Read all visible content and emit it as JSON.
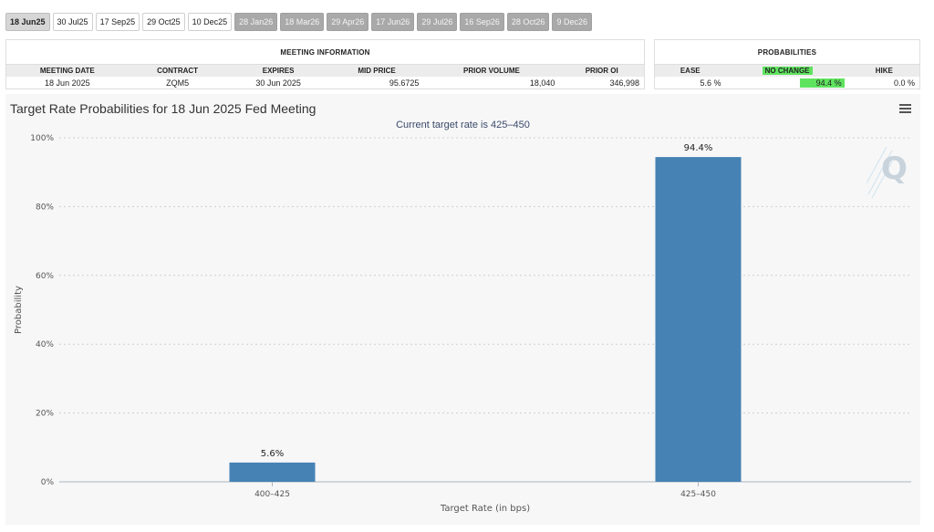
{
  "tabs": [
    {
      "label": "18 Jun25",
      "state": "selected"
    },
    {
      "label": "30 Jul25",
      "state": "enabled"
    },
    {
      "label": "17 Sep25",
      "state": "enabled"
    },
    {
      "label": "29 Oct25",
      "state": "enabled"
    },
    {
      "label": "10 Dec25",
      "state": "enabled"
    },
    {
      "label": "28 Jan26",
      "state": "disabled"
    },
    {
      "label": "18 Mar26",
      "state": "disabled"
    },
    {
      "label": "29 Apr26",
      "state": "disabled"
    },
    {
      "label": "17 Jun26",
      "state": "disabled"
    },
    {
      "label": "29 Jul26",
      "state": "disabled"
    },
    {
      "label": "16 Sep26",
      "state": "disabled"
    },
    {
      "label": "28 Oct26",
      "state": "disabled"
    },
    {
      "label": "9 Dec26",
      "state": "disabled"
    }
  ],
  "meeting_info": {
    "title": "MEETING INFORMATION",
    "headers": {
      "meeting_date": "MEETING DATE",
      "contract": "CONTRACT",
      "expires": "EXPIRES",
      "mid_price": "MID PRICE",
      "prior_volume": "PRIOR VOLUME",
      "prior_oi": "PRIOR OI"
    },
    "row": {
      "meeting_date": "18 Jun 2025",
      "contract": "ZQM5",
      "expires": "30 Jun 2025",
      "mid_price": "95.6725",
      "prior_volume": "18,040",
      "prior_oi": "346,998"
    }
  },
  "probabilities": {
    "title": "PROBABILITIES",
    "headers": {
      "ease": "EASE",
      "no_change": "NO CHANGE",
      "hike": "HIKE"
    },
    "row": {
      "ease": "5.6 %",
      "no_change": "94.4 %",
      "hike": "0.0 %"
    },
    "highlight_color": "#5fe35f"
  },
  "chart": {
    "title": "Target Rate Probabilities for 18 Jun 2025 Fed Meeting",
    "subtitle": "Current target rate is 425–450"
  },
  "chart_data": {
    "type": "bar",
    "categories": [
      "400–425",
      "425–450"
    ],
    "values": [
      5.6,
      94.4
    ],
    "data_labels": [
      "5.6%",
      "94.4%"
    ],
    "xlabel": "Target Rate (in bps)",
    "ylabel": "Probability",
    "ylim": [
      0,
      100
    ],
    "yticks": [
      "0%",
      "20%",
      "40%",
      "60%",
      "80%",
      "100%"
    ],
    "grid": true,
    "bar_color": "#4682b4"
  }
}
